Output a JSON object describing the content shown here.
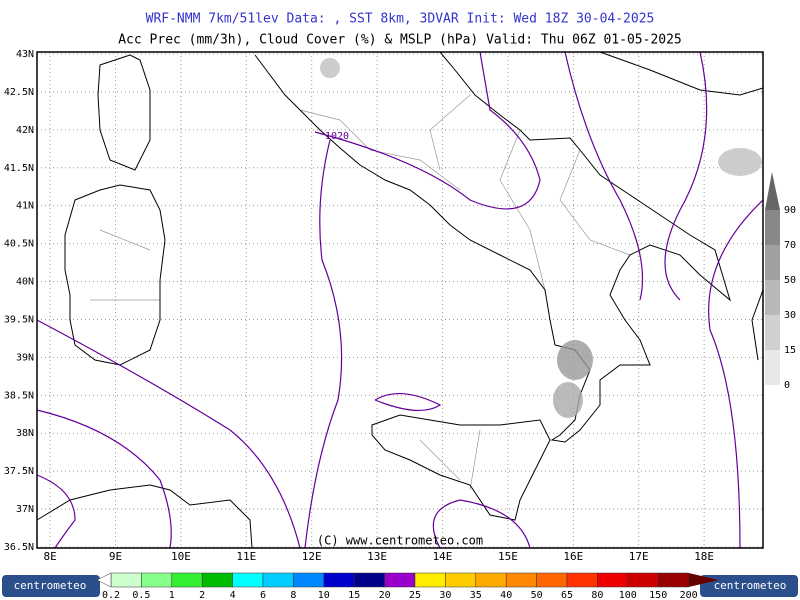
{
  "header": {
    "line1": "WRF-NMM 7km/51lev   Data: , SST 8km, 3DVAR   Init: Wed 18Z 30-04-2025",
    "line2": "Acc Prec (mm/3h), Cloud Cover (%) & MSLP (hPa)   Valid: Thu 06Z 01-05-2025"
  },
  "map": {
    "xlim": [
      7.8,
      18.9
    ],
    "ylim": [
      36.5,
      43
    ],
    "xticks": [
      {
        "value": 8,
        "label": "8E"
      },
      {
        "value": 9,
        "label": "9E"
      },
      {
        "value": 10,
        "label": "10E"
      },
      {
        "value": 11,
        "label": "11E"
      },
      {
        "value": 12,
        "label": "12E"
      },
      {
        "value": 13,
        "label": "13E"
      },
      {
        "value": 14,
        "label": "14E"
      },
      {
        "value": 15,
        "label": "15E"
      },
      {
        "value": 16,
        "label": "16E"
      },
      {
        "value": 17,
        "label": "17E"
      },
      {
        "value": 18,
        "label": "18E"
      }
    ],
    "yticks": [
      {
        "value": 36.5,
        "label": "36.5N"
      },
      {
        "value": 37,
        "label": "37N"
      },
      {
        "value": 37.5,
        "label": "37.5N"
      },
      {
        "value": 38,
        "label": "38N"
      },
      {
        "value": 38.5,
        "label": "38.5N"
      },
      {
        "value": 39,
        "label": "39N"
      },
      {
        "value": 39.5,
        "label": "39.5N"
      },
      {
        "value": 40,
        "label": "40N"
      },
      {
        "value": 40.5,
        "label": "40.5N"
      },
      {
        "value": 41,
        "label": "41N"
      },
      {
        "value": 41.5,
        "label": "41.5N"
      },
      {
        "value": 42,
        "label": "42N"
      },
      {
        "value": 42.5,
        "label": "42.5N"
      },
      {
        "value": 43,
        "label": "43N"
      }
    ],
    "grid": true,
    "isobar_label": "1020",
    "copyright": "(C) www.centrometeo.com"
  },
  "cloud_scale": {
    "ticks": [
      0,
      15,
      30,
      50,
      70,
      90
    ],
    "colors": [
      "#e8e8e8",
      "#d0d0d0",
      "#b8b8b8",
      "#a0a0a0",
      "#888888",
      "#666666"
    ]
  },
  "precip_scale": {
    "ticks": [
      0.2,
      0.5,
      1,
      2,
      4,
      6,
      8,
      10,
      15,
      20,
      25,
      30,
      35,
      40,
      50,
      65,
      80,
      100,
      150,
      200
    ],
    "colors": [
      "#ccffcc",
      "#88ff88",
      "#33ee33",
      "#00bb00",
      "#00ffff",
      "#00ccff",
      "#0088ff",
      "#0000cc",
      "#000088",
      "#9900cc",
      "#ffee00",
      "#ffcc00",
      "#ffaa00",
      "#ff8800",
      "#ff6600",
      "#ff3300",
      "#ee0000",
      "#cc0000",
      "#990000",
      "#660000"
    ]
  },
  "footer": {
    "logo_left": "centrometeo",
    "logo_right": "centrometeo"
  }
}
